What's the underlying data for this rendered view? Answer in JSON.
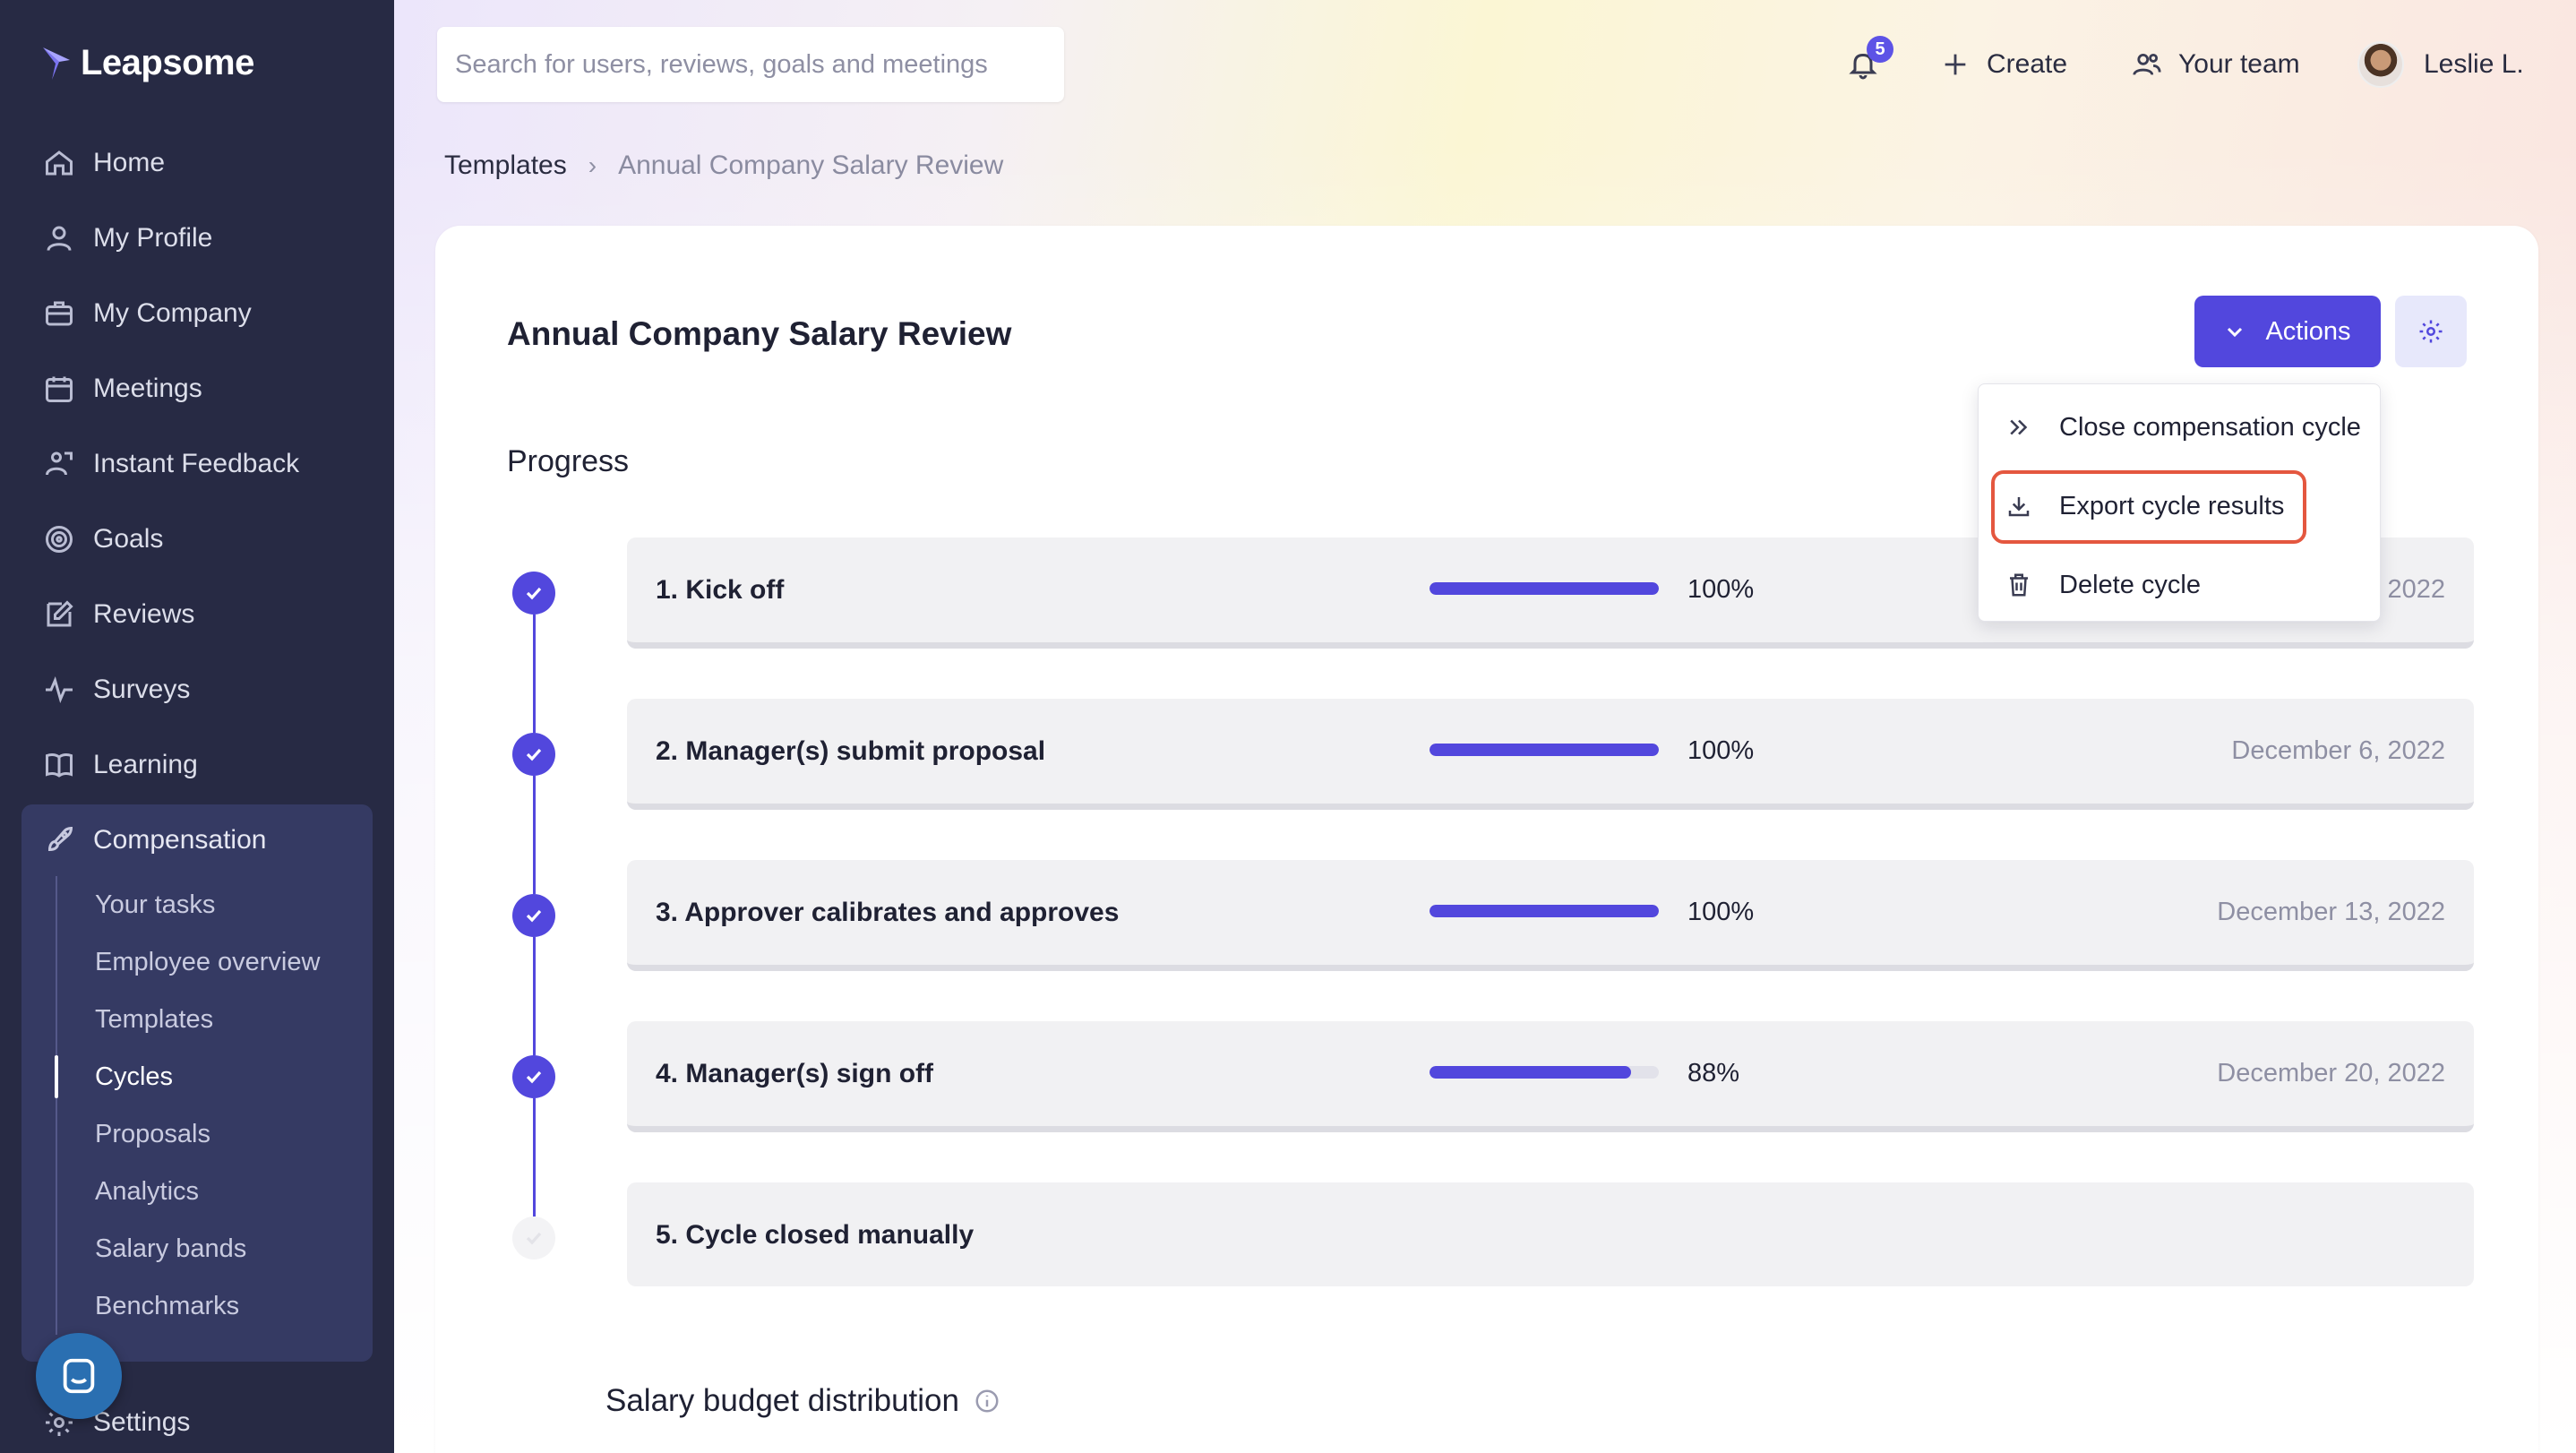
{
  "app": {
    "brand": "Leapsome"
  },
  "sidebar": {
    "items": [
      {
        "label": "Home",
        "icon": "home-icon"
      },
      {
        "label": "My Profile",
        "icon": "user-icon"
      },
      {
        "label": "My Company",
        "icon": "briefcase-icon"
      },
      {
        "label": "Meetings",
        "icon": "calendar-icon"
      },
      {
        "label": "Instant Feedback",
        "icon": "feedback-icon"
      },
      {
        "label": "Goals",
        "icon": "target-icon"
      },
      {
        "label": "Reviews",
        "icon": "edit-icon"
      },
      {
        "label": "Surveys",
        "icon": "pulse-icon"
      },
      {
        "label": "Learning",
        "icon": "book-icon"
      }
    ],
    "compensation": {
      "label": "Compensation",
      "icon": "rocket-icon",
      "subitems": [
        "Your tasks",
        "Employee overview",
        "Templates",
        "Cycles",
        "Proposals",
        "Analytics",
        "Salary bands",
        "Benchmarks"
      ],
      "active": "Cycles"
    },
    "settings": "Settings"
  },
  "header": {
    "search_placeholder": "Search for users, reviews, goals and meetings",
    "notifications_count": "5",
    "create_label": "Create",
    "team_label": "Your team",
    "user_name": "Leslie L."
  },
  "breadcrumb": {
    "parent": "Templates",
    "separator": "›",
    "current": "Annual Company Salary Review"
  },
  "page": {
    "title": "Annual Company Salary Review",
    "actions_label": "Actions",
    "progress_title": "Progress",
    "steps": [
      {
        "label": "1. Kick off",
        "percent": "100%",
        "progress": 1.0,
        "date": "2022",
        "done": true
      },
      {
        "label": "2. Manager(s) submit proposal",
        "percent": "100%",
        "progress": 1.0,
        "date": "December 6, 2022",
        "done": true
      },
      {
        "label": "3. Approver calibrates and approves",
        "percent": "100%",
        "progress": 1.0,
        "date": "December 13, 2022",
        "done": true
      },
      {
        "label": "4. Manager(s) sign off",
        "percent": "88%",
        "progress": 0.88,
        "date": "December 20, 2022",
        "done": true
      },
      {
        "label": "5. Cycle closed manually",
        "percent": "",
        "progress": 0,
        "date": "",
        "done": false
      }
    ],
    "budget_title": "Salary budget distribution"
  },
  "actions_menu": {
    "items": [
      {
        "label": "Close compensation cycle",
        "icon": "double-chevron-right-icon"
      },
      {
        "label": "Export cycle results",
        "icon": "download-icon",
        "highlighted": true
      },
      {
        "label": "Delete cycle",
        "icon": "trash-icon"
      }
    ]
  },
  "colors": {
    "accent": "#5247dd",
    "sidebar": "#272a44",
    "highlight": "#e4573f"
  }
}
